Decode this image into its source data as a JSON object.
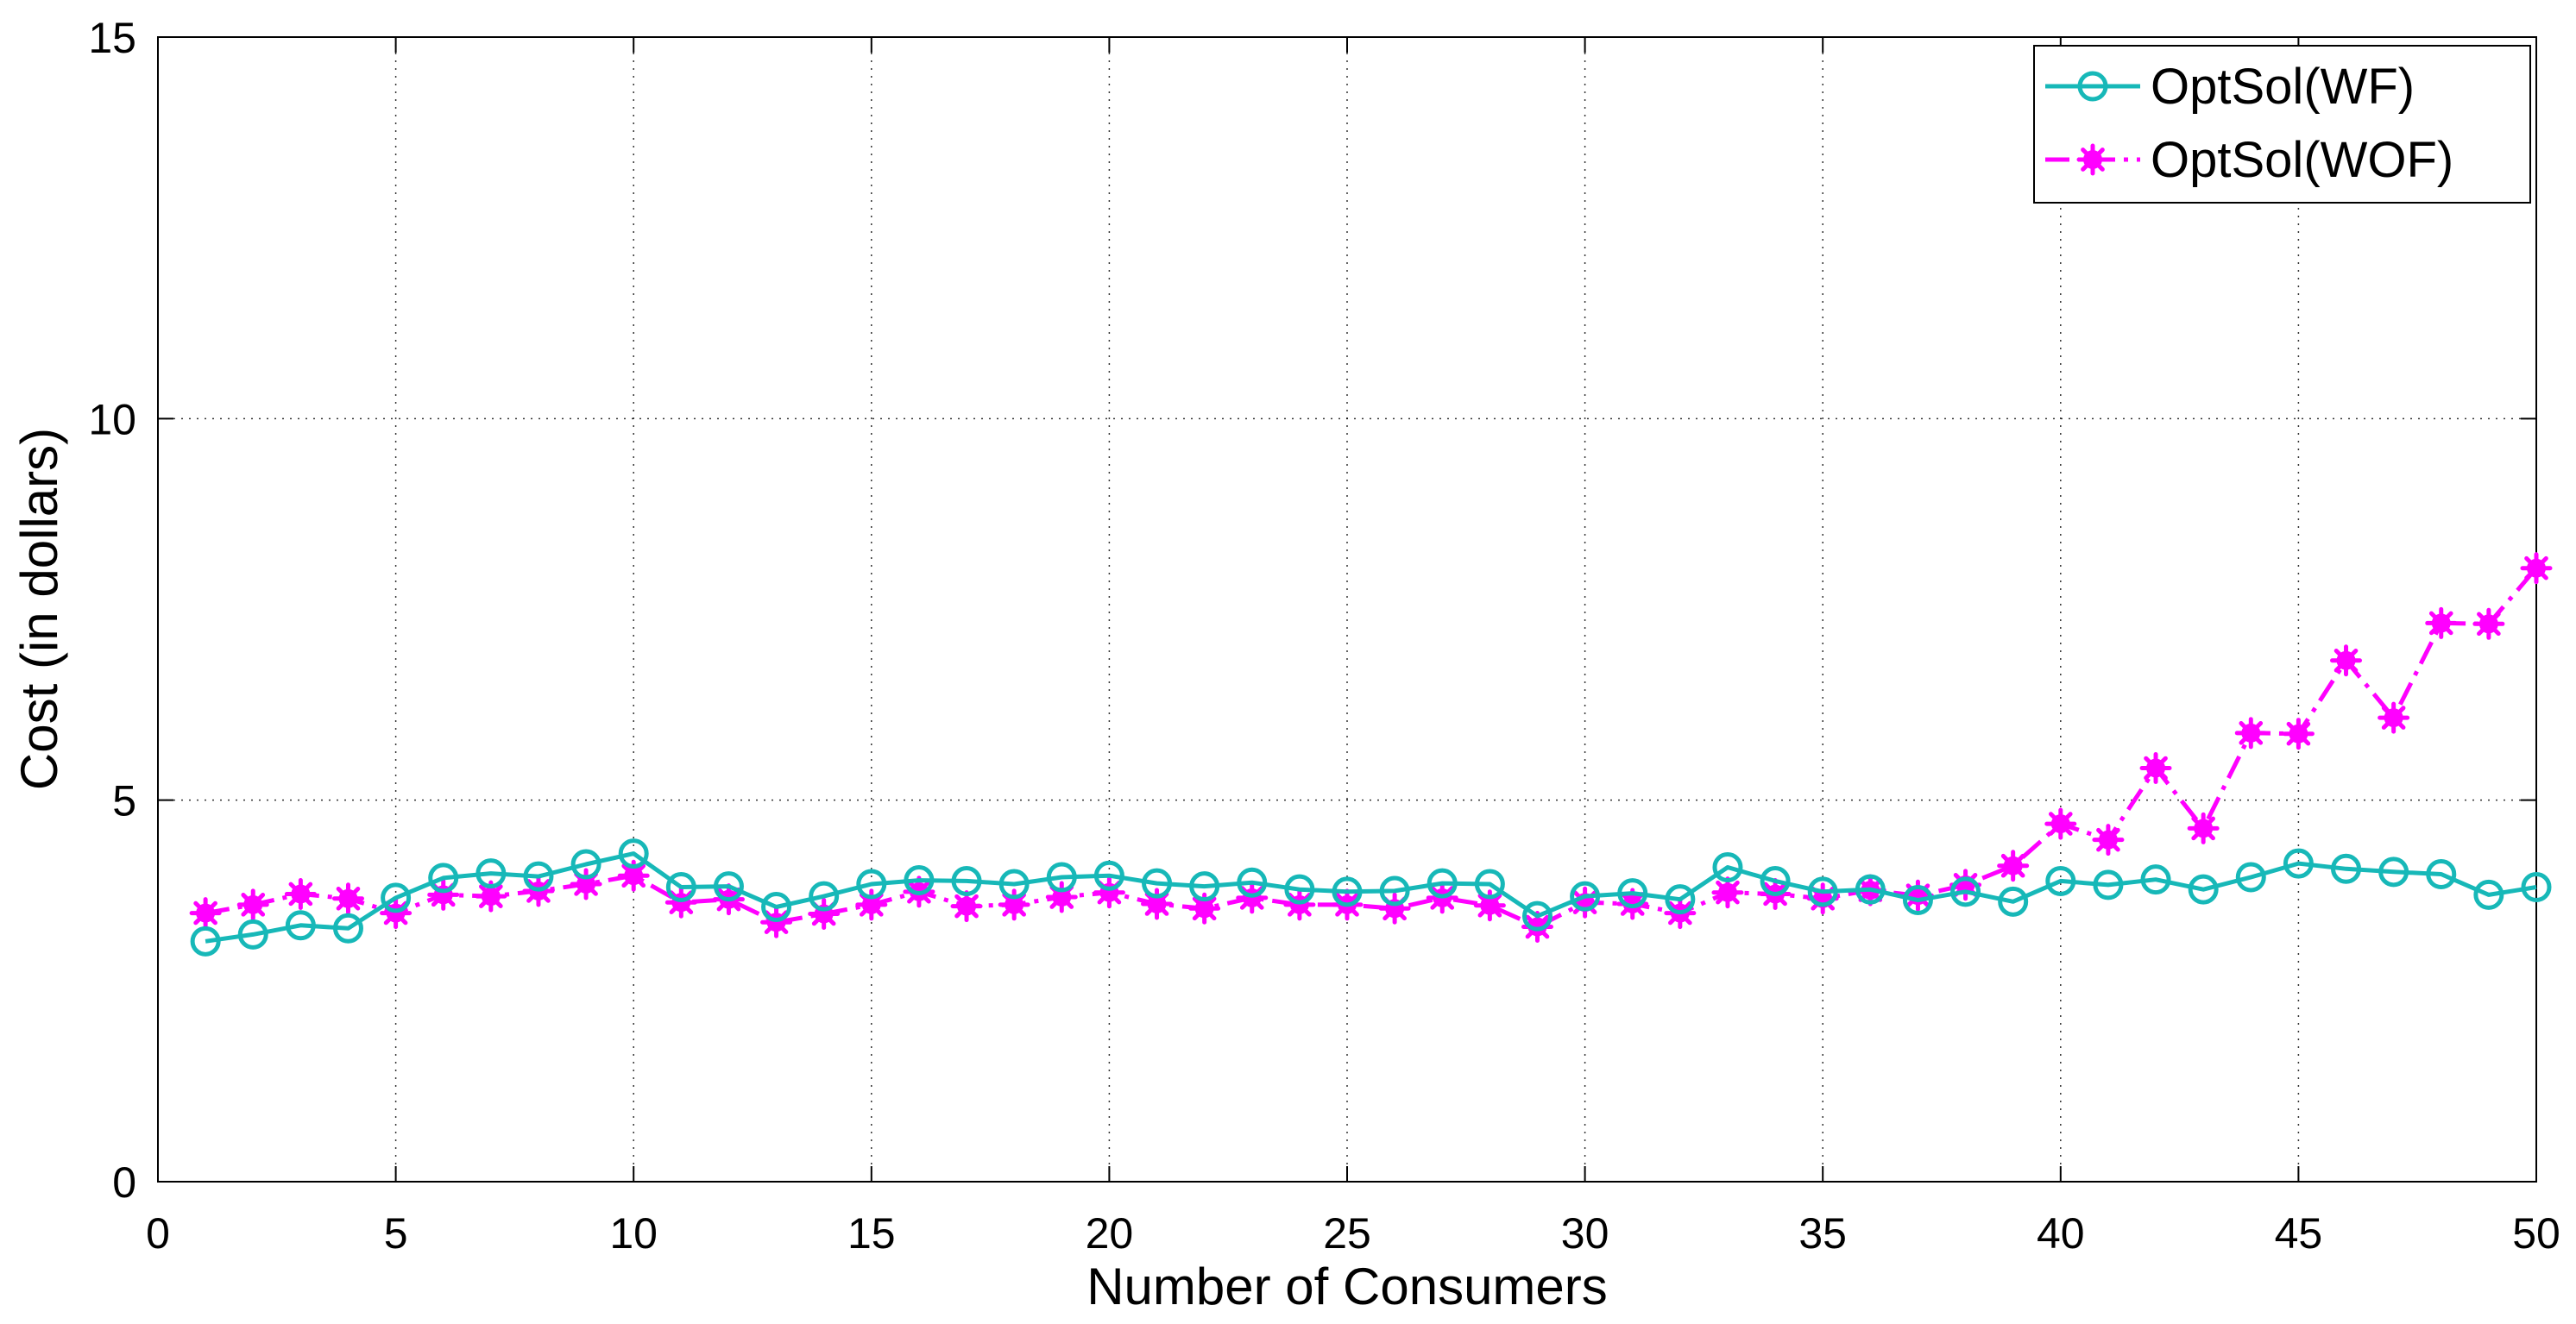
{
  "chart_data": {
    "type": "line",
    "title": "",
    "xlabel": "Number of Consumers",
    "ylabel": "Cost (in dollars)",
    "xlim": [
      0,
      50
    ],
    "ylim": [
      0,
      15
    ],
    "xticks": [
      0,
      5,
      10,
      15,
      20,
      25,
      30,
      35,
      40,
      45,
      50
    ],
    "yticks": [
      0,
      5,
      10,
      15
    ],
    "grid": true,
    "legend_position": "top-right",
    "x": [
      1,
      2,
      3,
      4,
      5,
      6,
      7,
      8,
      9,
      10,
      11,
      12,
      13,
      14,
      15,
      16,
      17,
      18,
      19,
      20,
      21,
      22,
      23,
      24,
      25,
      26,
      27,
      28,
      29,
      30,
      31,
      32,
      33,
      34,
      35,
      36,
      37,
      38,
      39,
      40,
      41,
      42,
      43,
      44,
      45,
      46,
      47,
      48,
      49,
      50
    ],
    "series": [
      {
        "name": "OptSol(WF)",
        "color": "#17b8b8",
        "line_style": "solid",
        "marker": "circle",
        "values": [
          3.15,
          3.24,
          3.36,
          3.32,
          3.72,
          3.98,
          4.04,
          4.0,
          4.16,
          4.3,
          3.86,
          3.87,
          3.6,
          3.74,
          3.9,
          3.95,
          3.94,
          3.9,
          3.99,
          4.01,
          3.91,
          3.87,
          3.92,
          3.83,
          3.8,
          3.81,
          3.91,
          3.9,
          3.48,
          3.74,
          3.78,
          3.7,
          4.12,
          3.94,
          3.8,
          3.83,
          3.69,
          3.8,
          3.67,
          3.94,
          3.89,
          3.96,
          3.83,
          3.99,
          4.17,
          4.1,
          4.06,
          4.03,
          3.76,
          3.86
        ]
      },
      {
        "name": "OptSol(WOF)",
        "color": "#ff00ff",
        "line_style": "dash-dot",
        "marker": "asterisk",
        "values": [
          3.52,
          3.63,
          3.77,
          3.71,
          3.52,
          3.76,
          3.74,
          3.81,
          3.9,
          4.01,
          3.66,
          3.7,
          3.4,
          3.51,
          3.63,
          3.8,
          3.61,
          3.63,
          3.73,
          3.79,
          3.64,
          3.58,
          3.72,
          3.63,
          3.63,
          3.58,
          3.72,
          3.62,
          3.34,
          3.66,
          3.64,
          3.52,
          3.79,
          3.77,
          3.71,
          3.82,
          3.75,
          3.89,
          4.14,
          4.69,
          4.48,
          5.42,
          4.63,
          5.88,
          5.87,
          6.83,
          6.08,
          7.32,
          7.31,
          8.04
        ]
      }
    ]
  }
}
